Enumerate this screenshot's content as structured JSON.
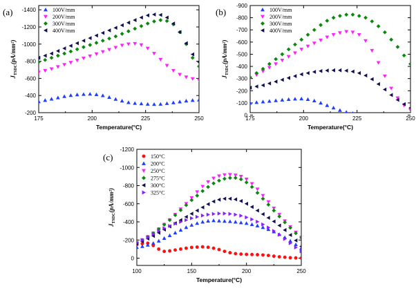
{
  "chart_data": [
    {
      "type": "scatter",
      "panel_label": "(a)",
      "xlabel": "Temperature(°C)",
      "ylabel_main": "J",
      "ylabel_sub": "TSDC",
      "ylabel_unit": "(pA/mm²)",
      "xlim": [
        175,
        250
      ],
      "ylim": [
        -200,
        -1450
      ],
      "xticks": [
        175,
        200,
        225,
        250
      ],
      "yticks": [
        -200,
        -400,
        -600,
        -800,
        -1000,
        -1200,
        -1400
      ],
      "grid": false,
      "legend_position": "top-left",
      "series": [
        {
          "name": "100V/mm",
          "color": "#1f3fff",
          "marker": "triangle-up",
          "x": [
            175,
            178,
            181,
            184,
            187,
            190,
            193,
            196,
            199,
            202,
            205,
            208,
            211,
            214,
            217,
            220,
            223,
            226,
            229,
            232,
            235,
            238,
            241,
            244,
            247,
            250
          ],
          "y": [
            -330,
            -345,
            -360,
            -375,
            -390,
            -402,
            -410,
            -415,
            -418,
            -412,
            -400,
            -380,
            -358,
            -338,
            -320,
            -310,
            -305,
            -300,
            -298,
            -300,
            -308,
            -318,
            -328,
            -338,
            -345,
            -350
          ]
        },
        {
          "name": "200V/mm",
          "color": "#ff20ff",
          "marker": "triangle-down",
          "x": [
            175,
            178,
            181,
            184,
            187,
            190,
            193,
            196,
            199,
            202,
            205,
            208,
            211,
            214,
            217,
            220,
            223,
            226,
            229,
            232,
            235,
            238,
            241,
            244,
            247,
            250
          ],
          "y": [
            -670,
            -690,
            -710,
            -735,
            -760,
            -785,
            -810,
            -835,
            -860,
            -885,
            -910,
            -935,
            -960,
            -985,
            -1000,
            -1005,
            -990,
            -950,
            -890,
            -820,
            -750,
            -690,
            -645,
            -615,
            -595,
            -580
          ]
        },
        {
          "name": "300V/mm",
          "color": "#0a8a0a",
          "marker": "diamond",
          "x": [
            175,
            178,
            181,
            184,
            187,
            190,
            193,
            196,
            199,
            202,
            205,
            208,
            211,
            214,
            217,
            220,
            223,
            226,
            229,
            232,
            235,
            238,
            241,
            244,
            247,
            250
          ],
          "y": [
            -790,
            -815,
            -840,
            -865,
            -890,
            -915,
            -940,
            -965,
            -990,
            -1015,
            -1040,
            -1065,
            -1090,
            -1120,
            -1150,
            -1180,
            -1210,
            -1240,
            -1265,
            -1280,
            -1270,
            -1230,
            -1140,
            -1000,
            -840,
            -740
          ]
        },
        {
          "name": "400V/mm",
          "color": "#101050",
          "marker": "triangle-left",
          "x": [
            175,
            178,
            181,
            184,
            187,
            190,
            193,
            196,
            199,
            202,
            205,
            208,
            211,
            214,
            217,
            220,
            223,
            226,
            229,
            232,
            235,
            238,
            241,
            244,
            247,
            250
          ],
          "y": [
            -840,
            -865,
            -890,
            -920,
            -950,
            -980,
            -1010,
            -1040,
            -1070,
            -1100,
            -1130,
            -1160,
            -1190,
            -1220,
            -1250,
            -1280,
            -1310,
            -1335,
            -1345,
            -1340,
            -1310,
            -1240,
            -1140,
            -1010,
            -880,
            -790
          ]
        }
      ]
    },
    {
      "type": "scatter",
      "panel_label": "(b)",
      "xlabel": "Temperature(°C)",
      "ylabel_main": "J",
      "ylabel_sub": "TSDC",
      "ylabel_unit": "(pA/mm²)",
      "xlim": [
        175,
        250
      ],
      "ylim": [
        -20,
        -900
      ],
      "xticks": [
        175,
        200,
        225,
        250
      ],
      "yticks": [
        0,
        -100,
        -200,
        -300,
        -400,
        -500,
        -600,
        -700,
        -800,
        -900
      ],
      "grid": false,
      "legend_position": "top-left",
      "series": [
        {
          "name": "100V/mm",
          "color": "#1f3fff",
          "marker": "triangle-up",
          "x": [
            175,
            178,
            181,
            184,
            187,
            190,
            193,
            196,
            199,
            202,
            205,
            208,
            211,
            214,
            217,
            220,
            223,
            226,
            229,
            232,
            235,
            238,
            241,
            244,
            247,
            250
          ],
          "y": [
            -100,
            -105,
            -110,
            -115,
            -120,
            -125,
            -130,
            -133,
            -135,
            -130,
            -118,
            -100,
            -80,
            -60,
            -40,
            -25,
            -15,
            -10,
            -8,
            -6,
            -5,
            -5,
            -5,
            -5,
            -5,
            -5
          ]
        },
        {
          "name": "200V/mm",
          "color": "#ff20ff",
          "marker": "triangle-down",
          "x": [
            175,
            178,
            181,
            184,
            187,
            190,
            193,
            196,
            199,
            202,
            205,
            208,
            211,
            214,
            217,
            220,
            223,
            226,
            229,
            232,
            235,
            238,
            241,
            244,
            247,
            250
          ],
          "y": [
            -300,
            -330,
            -360,
            -390,
            -420,
            -450,
            -480,
            -510,
            -540,
            -565,
            -590,
            -615,
            -640,
            -660,
            -675,
            -685,
            -680,
            -660,
            -610,
            -530,
            -430,
            -320,
            -220,
            -140,
            -80,
            -40
          ]
        },
        {
          "name": "300V/mm",
          "color": "#0a8a0a",
          "marker": "diamond",
          "x": [
            175,
            178,
            181,
            184,
            187,
            190,
            193,
            196,
            199,
            202,
            205,
            208,
            211,
            214,
            217,
            220,
            223,
            226,
            229,
            232,
            235,
            238,
            241,
            244,
            247,
            250
          ],
          "y": [
            -310,
            -345,
            -380,
            -420,
            -460,
            -500,
            -540,
            -580,
            -620,
            -660,
            -700,
            -740,
            -775,
            -800,
            -815,
            -825,
            -825,
            -815,
            -800,
            -770,
            -730,
            -680,
            -620,
            -560,
            -490,
            -420
          ]
        },
        {
          "name": "400V/mm",
          "color": "#101050",
          "marker": "triangle-left",
          "x": [
            175,
            178,
            181,
            184,
            187,
            190,
            193,
            196,
            199,
            202,
            205,
            208,
            211,
            214,
            217,
            220,
            223,
            226,
            229,
            232,
            235,
            238,
            241,
            244,
            247,
            250
          ],
          "y": [
            -225,
            -235,
            -245,
            -260,
            -275,
            -290,
            -305,
            -320,
            -335,
            -345,
            -355,
            -362,
            -366,
            -368,
            -368,
            -365,
            -358,
            -345,
            -325,
            -295,
            -255,
            -210,
            -165,
            -125,
            -90,
            -60
          ]
        }
      ]
    },
    {
      "type": "scatter",
      "panel_label": "(c)",
      "xlabel": "Temperature(°C)",
      "ylabel_main": "J",
      "ylabel_sub": "TSDC",
      "ylabel_unit": "(pA/mm²)",
      "xlim": [
        100,
        250
      ],
      "ylim": [
        80,
        -1200
      ],
      "xticks": [
        100,
        150,
        200,
        250
      ],
      "yticks": [
        0,
        -200,
        -400,
        -600,
        -800,
        -1000,
        -1200
      ],
      "grid": false,
      "legend_position": "top-left",
      "series": [
        {
          "name": "150°C",
          "color": "#ff1010",
          "marker": "circle",
          "x": [
            100,
            105,
            110,
            115,
            120,
            125,
            130,
            135,
            140,
            145,
            150,
            155,
            160,
            165,
            170,
            175,
            180,
            185,
            190,
            195,
            200,
            205,
            210,
            215,
            220,
            225,
            230,
            235,
            240,
            245,
            250
          ],
          "y": [
            -150,
            -160,
            -165,
            -140,
            -100,
            -75,
            -80,
            -90,
            -100,
            -110,
            -118,
            -122,
            -125,
            -120,
            -110,
            -95,
            -75,
            -60,
            -50,
            -45,
            -42,
            -40,
            -38,
            -35,
            -30,
            -22,
            -15,
            -10,
            -5,
            -3,
            -2
          ]
        },
        {
          "name": "200°C",
          "color": "#1f3fff",
          "marker": "triangle-up",
          "x": [
            100,
            105,
            110,
            115,
            120,
            125,
            130,
            135,
            140,
            145,
            150,
            155,
            160,
            165,
            170,
            175,
            180,
            185,
            190,
            195,
            200,
            205,
            210,
            215,
            220,
            225,
            230,
            235,
            240,
            245,
            250
          ],
          "y": [
            -120,
            -130,
            -145,
            -165,
            -190,
            -220,
            -250,
            -280,
            -310,
            -340,
            -365,
            -385,
            -400,
            -410,
            -415,
            -412,
            -408,
            -405,
            -400,
            -392,
            -385,
            -372,
            -358,
            -340,
            -318,
            -292,
            -262,
            -228,
            -190,
            -150,
            -110
          ]
        },
        {
          "name": "250°C",
          "color": "#ff20ff",
          "marker": "triangle-down",
          "x": [
            100,
            105,
            110,
            115,
            120,
            125,
            130,
            135,
            140,
            145,
            150,
            155,
            160,
            165,
            170,
            175,
            180,
            185,
            190,
            195,
            200,
            205,
            210,
            215,
            220,
            225,
            230,
            235,
            240,
            245,
            250
          ],
          "y": [
            -170,
            -200,
            -235,
            -275,
            -320,
            -370,
            -420,
            -480,
            -540,
            -600,
            -665,
            -730,
            -790,
            -840,
            -880,
            -905,
            -918,
            -920,
            -915,
            -900,
            -870,
            -820,
            -760,
            -690,
            -620,
            -550,
            -480,
            -410,
            -345,
            -285,
            -230
          ]
        },
        {
          "name": "275°C",
          "color": "#0a8a0a",
          "marker": "diamond",
          "x": [
            100,
            105,
            110,
            115,
            120,
            125,
            130,
            135,
            140,
            145,
            150,
            155,
            160,
            165,
            170,
            175,
            180,
            185,
            190,
            195,
            200,
            205,
            210,
            215,
            220,
            225,
            230,
            235,
            240,
            245,
            250
          ],
          "y": [
            -170,
            -200,
            -235,
            -275,
            -320,
            -370,
            -420,
            -475,
            -530,
            -585,
            -640,
            -690,
            -740,
            -785,
            -825,
            -855,
            -875,
            -885,
            -885,
            -870,
            -835,
            -785,
            -720,
            -655,
            -590,
            -525,
            -460,
            -395,
            -335,
            -275,
            -225
          ]
        },
        {
          "name": "300°C",
          "color": "#101050",
          "marker": "triangle-left",
          "x": [
            100,
            105,
            110,
            115,
            120,
            125,
            130,
            135,
            140,
            145,
            150,
            155,
            160,
            165,
            170,
            175,
            180,
            185,
            190,
            195,
            200,
            205,
            210,
            215,
            220,
            225,
            230,
            235,
            240,
            245,
            250
          ],
          "y": [
            -160,
            -185,
            -215,
            -245,
            -280,
            -315,
            -350,
            -385,
            -420,
            -455,
            -490,
            -525,
            -560,
            -595,
            -625,
            -645,
            -655,
            -655,
            -648,
            -630,
            -600,
            -565,
            -525,
            -485,
            -445,
            -405,
            -360,
            -310,
            -255,
            -195,
            -130
          ]
        },
        {
          "name": "325°C",
          "color": "#8a20ff",
          "marker": "triangle-right",
          "x": [
            100,
            105,
            110,
            115,
            120,
            125,
            130,
            135,
            140,
            145,
            150,
            155,
            160,
            165,
            170,
            175,
            180,
            185,
            190,
            195,
            200,
            205,
            210,
            215,
            220,
            225,
            230,
            235,
            240,
            245,
            250
          ],
          "y": [
            -170,
            -200,
            -230,
            -265,
            -300,
            -330,
            -355,
            -380,
            -400,
            -420,
            -440,
            -455,
            -470,
            -480,
            -488,
            -492,
            -492,
            -488,
            -480,
            -468,
            -450,
            -428,
            -402,
            -372,
            -338,
            -300,
            -258,
            -212,
            -165,
            -118,
            -75
          ]
        }
      ]
    }
  ]
}
